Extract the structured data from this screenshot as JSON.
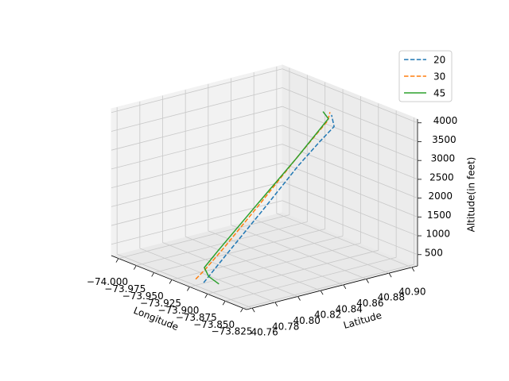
{
  "chart_data": {
    "type": "line3d",
    "xlabel": "Longitude",
    "ylabel": "Latitude",
    "zlabel": "Altitude(in feet)",
    "xlim": [
      -74.01,
      -73.82
    ],
    "ylim": [
      40.755,
      40.905
    ],
    "zlim": [
      200,
      4100
    ],
    "xticks": [
      {
        "value": -74.0,
        "label": "−74.000"
      },
      {
        "value": -73.975,
        "label": "−73.975"
      },
      {
        "value": -73.95,
        "label": "−73.950"
      },
      {
        "value": -73.925,
        "label": "−73.925"
      },
      {
        "value": -73.9,
        "label": "−73.900"
      },
      {
        "value": -73.875,
        "label": "−73.875"
      },
      {
        "value": -73.85,
        "label": "−73.850"
      },
      {
        "value": -73.825,
        "label": "−73.825"
      }
    ],
    "yticks": [
      40.76,
      40.78,
      {
        "value": 40.8,
        "label": "40.80"
      },
      40.82,
      40.84,
      40.86,
      40.88,
      {
        "value": 40.9,
        "label": "40.90"
      }
    ],
    "zticks": [
      500,
      1000,
      1500,
      2000,
      2500,
      3000,
      3500,
      4000
    ],
    "grid": true,
    "legend": "upper right",
    "series": [
      {
        "name": "20",
        "color": "#1f77b4",
        "linestyle": "dashed",
        "x": [
          -73.885,
          -73.882,
          -73.878,
          -73.875,
          -73.873,
          -73.878,
          -73.888
        ],
        "y": [
          40.758,
          40.775,
          40.805,
          40.835,
          40.852,
          40.868,
          40.872
        ],
        "z": [
          400,
          1000,
          2000,
          3000,
          3500,
          3750,
          3950
        ]
      },
      {
        "name": "30",
        "color": "#ff7f0e",
        "linestyle": "dashed",
        "x": [
          -73.909,
          -73.905,
          -73.9,
          -73.896,
          -73.893,
          -73.89,
          -73.895
        ],
        "y": [
          40.766,
          40.772,
          40.785,
          40.815,
          40.845,
          40.87,
          40.875
        ],
        "z": [
          250,
          500,
          1000,
          2000,
          3000,
          3800,
          3950
        ]
      },
      {
        "name": "45",
        "color": "#2ca02c",
        "linestyle": "solid",
        "x": [
          -73.886,
          -73.894,
          -73.897,
          -73.898,
          -73.899,
          -73.9,
          -73.902,
          -73.9
        ],
        "y": [
          40.772,
          40.768,
          40.766,
          40.779,
          40.812,
          40.849,
          40.878,
          40.872
        ],
        "z": [
          250,
          420,
          650,
          1000,
          1900,
          2900,
          3700,
          3950
        ]
      }
    ]
  }
}
